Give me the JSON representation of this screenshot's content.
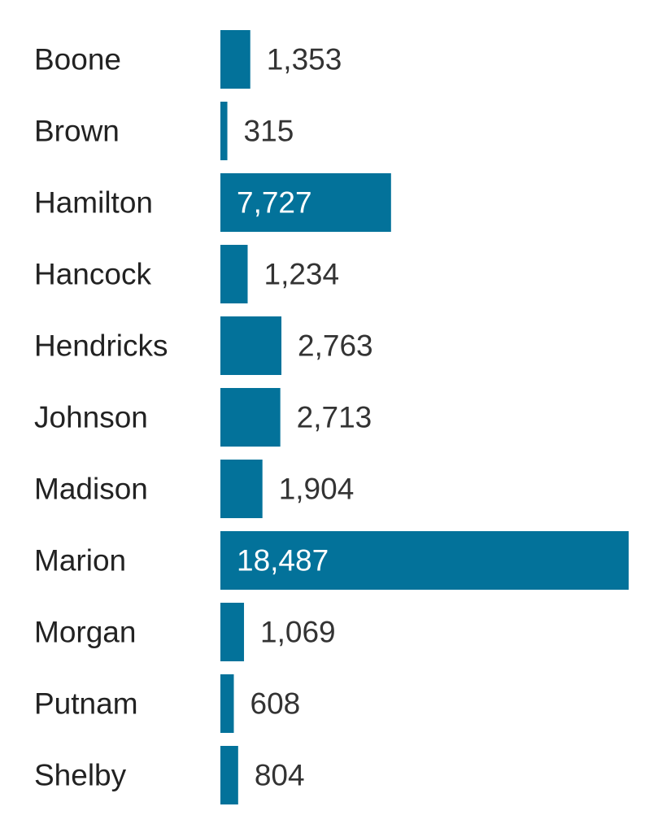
{
  "chart_data": {
    "type": "bar",
    "orientation": "horizontal",
    "color": "#03729a",
    "categories": [
      "Boone",
      "Brown",
      "Hamilton",
      "Hancock",
      "Hendricks",
      "Johnson",
      "Madison",
      "Marion",
      "Morgan",
      "Putnam",
      "Shelby"
    ],
    "values": [
      1353,
      315,
      7727,
      1234,
      2763,
      2713,
      1904,
      18487,
      1069,
      608,
      804
    ],
    "value_labels": [
      "1,353",
      "315",
      "7,727",
      "1,234",
      "2,763",
      "2,713",
      "1,904",
      "18,487",
      "1,069",
      "608",
      "804"
    ]
  }
}
